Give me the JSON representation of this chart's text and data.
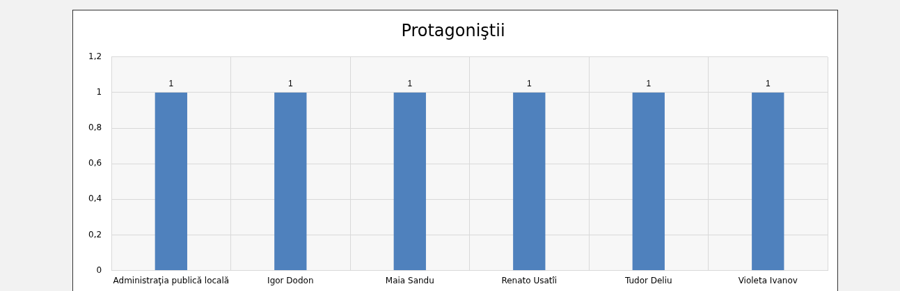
{
  "chart_data": {
    "type": "bar",
    "title": "Protagoniştii",
    "categories": [
      "Administraţia publică locală",
      "Igor Dodon",
      "Maia Sandu",
      "Renato Usatîi",
      "Tudor Deliu",
      "Violeta Ivanov"
    ],
    "values": [
      1,
      1,
      1,
      1,
      1,
      1
    ],
    "color": "#4f81bd",
    "ylim": [
      0,
      1.2
    ],
    "yticks": [
      {
        "value": 0,
        "label": "0"
      },
      {
        "value": 0.2,
        "label": "0,2"
      },
      {
        "value": 0.4,
        "label": "0,4"
      },
      {
        "value": 0.6,
        "label": "0,6"
      },
      {
        "value": 0.8,
        "label": "0,8"
      },
      {
        "value": 1,
        "label": "1"
      },
      {
        "value": 1.2,
        "label": "1,2"
      }
    ],
    "grid": true,
    "data_labels": true
  }
}
